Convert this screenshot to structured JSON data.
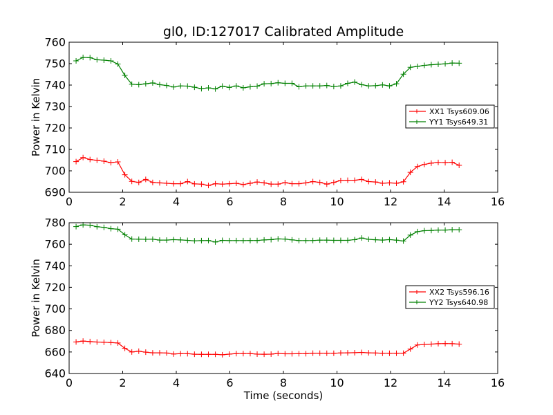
{
  "figure": {
    "title": "gl0, ID:127017 Calibrated Amplitude",
    "xlabel": "Time (seconds)"
  },
  "chart_data": [
    {
      "type": "line",
      "title": "gl0, ID:127017 Calibrated Amplitude",
      "xlabel": "",
      "ylabel": "Power in Kelvin",
      "xlim": [
        0,
        16
      ],
      "ylim": [
        690,
        760
      ],
      "xticks": [
        0,
        2,
        4,
        6,
        8,
        10,
        12,
        14,
        16
      ],
      "yticks": [
        690,
        700,
        710,
        720,
        730,
        740,
        750,
        760
      ],
      "grid": false,
      "legend_position": "center-right",
      "x": [
        0.26,
        0.52,
        0.78,
        1.04,
        1.3,
        1.56,
        1.82,
        2.08,
        2.34,
        2.6,
        2.86,
        3.12,
        3.38,
        3.64,
        3.9,
        4.16,
        4.42,
        4.68,
        4.94,
        5.2,
        5.46,
        5.72,
        5.98,
        6.24,
        6.5,
        6.76,
        7.02,
        7.28,
        7.54,
        7.8,
        8.06,
        8.32,
        8.58,
        8.84,
        9.1,
        9.36,
        9.62,
        9.88,
        10.14,
        10.4,
        10.66,
        10.92,
        11.18,
        11.44,
        11.7,
        11.96,
        12.22,
        12.48,
        12.74,
        13.0,
        13.26,
        13.52,
        13.78,
        14.04,
        14.3,
        14.56
      ],
      "series": [
        {
          "name": "XX1 Tsys609.06",
          "color": "#ff0000",
          "values": [
            704.3,
            706.2,
            705.3,
            704.9,
            704.5,
            703.8,
            704.2,
            698.2,
            695.1,
            694.6,
            696.0,
            694.6,
            694.4,
            694.2,
            694.0,
            694.0,
            695.0,
            693.9,
            693.8,
            693.2,
            694.0,
            693.8,
            694.0,
            694.2,
            693.6,
            694.2,
            694.8,
            694.4,
            693.8,
            693.8,
            694.5,
            694.0,
            694.0,
            694.4,
            695.0,
            694.6,
            693.8,
            694.6,
            695.5,
            695.6,
            695.6,
            696.0,
            695.0,
            694.8,
            694.2,
            694.4,
            694.2,
            694.9,
            699.3,
            702.0,
            703.0,
            703.6,
            703.9,
            703.8,
            704.0,
            702.6
          ]
        },
        {
          "name": "YY1 Tsys649.31",
          "color": "#008000",
          "values": [
            751.3,
            752.9,
            752.8,
            751.8,
            751.6,
            751.3,
            749.8,
            744.5,
            740.4,
            740.2,
            740.6,
            741.0,
            740.2,
            739.8,
            739.1,
            739.6,
            739.5,
            739.0,
            738.3,
            738.7,
            738.2,
            739.5,
            738.9,
            739.6,
            738.7,
            739.2,
            739.5,
            740.6,
            740.7,
            741.1,
            740.8,
            740.8,
            739.2,
            739.6,
            739.6,
            739.6,
            739.8,
            739.3,
            739.6,
            740.8,
            741.4,
            740.2,
            739.6,
            739.7,
            740.1,
            739.6,
            740.6,
            745.1,
            748.3,
            748.7,
            749.2,
            749.5,
            749.7,
            749.9,
            750.3,
            750.2
          ]
        }
      ]
    },
    {
      "type": "line",
      "title": "",
      "xlabel": "Time (seconds)",
      "ylabel": "Power in Kelvin",
      "xlim": [
        0,
        16
      ],
      "ylim": [
        640,
        780
      ],
      "xticks": [
        0,
        2,
        4,
        6,
        8,
        10,
        12,
        14,
        16
      ],
      "yticks": [
        640,
        660,
        680,
        700,
        720,
        740,
        760,
        780
      ],
      "grid": false,
      "legend_position": "center-right",
      "x": [
        0.26,
        0.52,
        0.78,
        1.04,
        1.3,
        1.56,
        1.82,
        2.08,
        2.34,
        2.6,
        2.86,
        3.12,
        3.38,
        3.64,
        3.9,
        4.16,
        4.42,
        4.68,
        4.94,
        5.2,
        5.46,
        5.72,
        5.98,
        6.24,
        6.5,
        6.76,
        7.02,
        7.28,
        7.54,
        7.8,
        8.06,
        8.32,
        8.58,
        8.84,
        9.1,
        9.36,
        9.62,
        9.88,
        10.14,
        10.4,
        10.66,
        10.92,
        11.18,
        11.44,
        11.7,
        11.96,
        12.22,
        12.48,
        12.74,
        13.0,
        13.26,
        13.52,
        13.78,
        14.04,
        14.3,
        14.56
      ],
      "series": [
        {
          "name": "XX2 Tsys596.16",
          "color": "#ff0000",
          "values": [
            669.3,
            670.1,
            669.6,
            669.2,
            669.0,
            668.7,
            668.3,
            663.4,
            660.0,
            660.7,
            659.8,
            659.2,
            659.2,
            659.0,
            658.1,
            658.4,
            658.4,
            657.9,
            657.8,
            657.8,
            657.8,
            657.4,
            658.0,
            658.5,
            658.5,
            658.5,
            658.0,
            657.9,
            658.0,
            658.6,
            658.3,
            658.3,
            658.4,
            658.4,
            658.9,
            658.9,
            658.8,
            658.8,
            659.1,
            659.2,
            659.3,
            659.6,
            659.2,
            659.0,
            658.8,
            658.8,
            658.8,
            658.9,
            662.7,
            666.5,
            667.0,
            667.3,
            667.7,
            667.8,
            667.7,
            667.3
          ]
        },
        {
          "name": "YY2 Tsys640.98",
          "color": "#008000",
          "values": [
            776.4,
            778.0,
            777.7,
            776.3,
            775.7,
            774.5,
            774.0,
            768.8,
            764.8,
            764.7,
            764.6,
            764.7,
            763.9,
            763.9,
            764.3,
            764.0,
            763.6,
            763.2,
            763.4,
            763.5,
            762.1,
            763.6,
            763.4,
            763.4,
            763.4,
            763.5,
            763.5,
            764.0,
            764.3,
            765.0,
            764.8,
            764.1,
            763.4,
            763.4,
            763.5,
            763.8,
            763.8,
            763.6,
            763.6,
            763.6,
            764.3,
            765.8,
            764.6,
            764.2,
            763.9,
            764.3,
            763.8,
            763.0,
            768.5,
            771.7,
            772.6,
            772.8,
            773.2,
            773.2,
            773.5,
            773.5
          ]
        }
      ]
    }
  ]
}
